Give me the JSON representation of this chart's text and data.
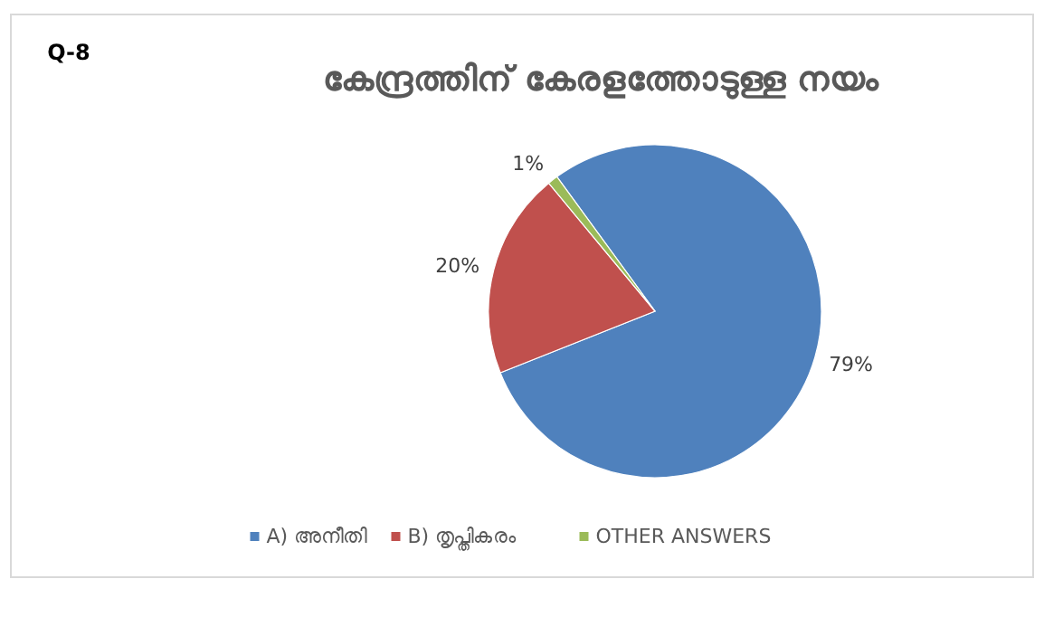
{
  "chart_data": {
    "type": "pie",
    "title": "കേന്ദ്രത്തിന് കേരളത്തോടുള്ള നയം",
    "categories": [
      "A) അനീതി",
      "B) തൃപ്തികരം",
      "OTHER ANSWERS"
    ],
    "values": [
      79,
      20,
      1
    ],
    "colors": [
      "#4f81bd",
      "#c0504d",
      "#9bbb59"
    ],
    "value_labels": [
      "79%",
      "20%",
      "1%"
    ],
    "legend": "bottom",
    "annotations": [
      "Q-8"
    ]
  }
}
